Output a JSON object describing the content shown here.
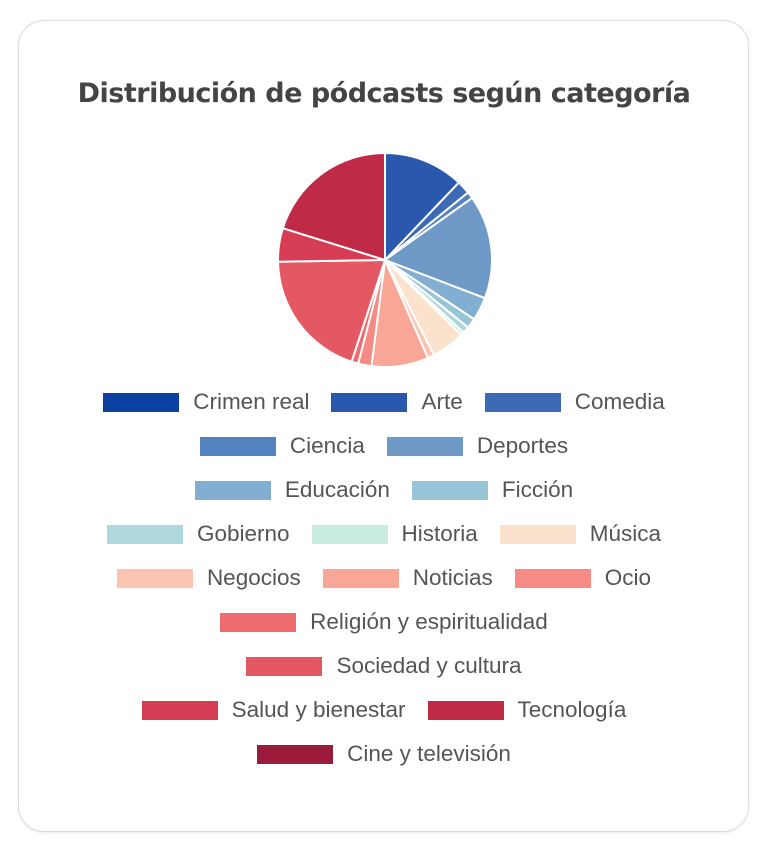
{
  "chart_data": {
    "type": "pie",
    "title": "Distribución de pódcasts según categoría",
    "legend_position": "bottom",
    "slices": [
      {
        "label": "Crimen real",
        "value": 0,
        "color": "#0b3fa0"
      },
      {
        "label": "Arte",
        "value": 12,
        "color": "#2a58ad"
      },
      {
        "label": "Comedia",
        "value": 2,
        "color": "#3d6ab5"
      },
      {
        "label": "Ciencia",
        "value": 1,
        "color": "#5383be"
      },
      {
        "label": "Deportes",
        "value": 15.5,
        "color": "#6f9ac8"
      },
      {
        "label": "Educación",
        "value": 3.5,
        "color": "#82aed2"
      },
      {
        "label": "Ficción",
        "value": 1.5,
        "color": "#98c4d8"
      },
      {
        "label": "Gobierno",
        "value": 1,
        "color": "#aed8de"
      },
      {
        "label": "Historia",
        "value": 0.5,
        "color": "#c8ebe0"
      },
      {
        "label": "Música",
        "value": 5,
        "color": "#fbe2cc"
      },
      {
        "label": "Negocios",
        "value": 1,
        "color": "#fbc4b1"
      },
      {
        "label": "Noticias",
        "value": 8.5,
        "color": "#f8a796"
      },
      {
        "label": "Ocio",
        "value": 2,
        "color": "#f58b84"
      },
      {
        "label": "Religión y espiritualidad",
        "value": 1,
        "color": "#ee6b6e"
      },
      {
        "label": "Sociedad y cultura",
        "value": 19.5,
        "color": "#e45864"
      },
      {
        "label": "Salud y bienestar",
        "value": 5,
        "color": "#d73c55"
      },
      {
        "label": "Tecnología",
        "value": 20,
        "color": "#bf2a47"
      },
      {
        "label": "Cine y televisión",
        "value": 0,
        "color": "#9b1b3c"
      }
    ],
    "legend_rows": [
      [
        0,
        1,
        2
      ],
      [
        3,
        4
      ],
      [
        5,
        6
      ],
      [
        7,
        8,
        9
      ],
      [
        10,
        11,
        12
      ],
      [
        13
      ],
      [
        14
      ],
      [
        15,
        16
      ],
      [
        17
      ]
    ]
  }
}
